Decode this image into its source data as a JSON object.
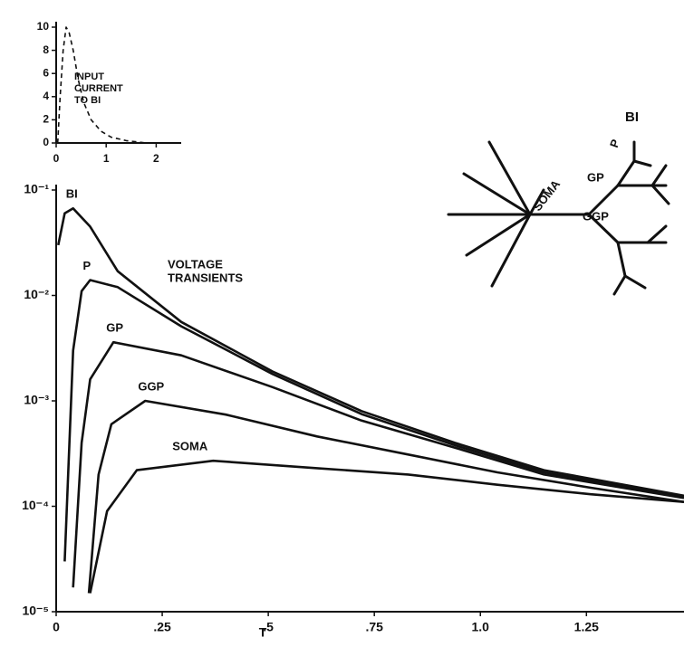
{
  "chart_data": [
    {
      "type": "line",
      "yscale": "log",
      "xlabel": "T",
      "annotations": [
        "VOLTAGE",
        "TRANSIENTS"
      ],
      "color": "#111",
      "xlim": [
        0,
        1.48
      ],
      "ylim": [
        1e-05,
        0.1
      ],
      "xticks": [
        0,
        {
          "value": 0.25,
          "label": ".25"
        },
        {
          "value": 0.5,
          "label": ".5"
        },
        {
          "value": 0.75,
          "label": ".75"
        },
        {
          "value": 1.0,
          "label": "1.0"
        },
        {
          "value": 1.25,
          "label": "1.25"
        }
      ],
      "yticks": [
        {
          "value": 0.1,
          "label": "10⁻¹"
        },
        {
          "value": 0.01,
          "label": "10⁻²"
        },
        {
          "value": 0.001,
          "label": "10⁻³"
        },
        {
          "value": 0.0001,
          "label": "10⁻⁴"
        },
        {
          "value": 1e-05,
          "label": "10⁻⁵"
        }
      ],
      "series": [
        {
          "name": "BI",
          "x": [
            0.005,
            0.02,
            0.04,
            0.08,
            0.145,
            0.295,
            0.51,
            0.72,
            0.94,
            1.15,
            1.48
          ],
          "values": [
            0.03,
            0.06,
            0.067,
            0.045,
            0.017,
            0.0056,
            0.0019,
            0.0008,
            0.0004,
            0.00022,
            0.000126
          ]
        },
        {
          "name": "P",
          "x": [
            0.02,
            0.04,
            0.06,
            0.08,
            0.145,
            0.295,
            0.51,
            0.72,
            0.94,
            1.15,
            1.48
          ],
          "values": [
            3e-05,
            0.003,
            0.011,
            0.014,
            0.012,
            0.0051,
            0.0018,
            0.00075,
            0.00038,
            0.00021,
            0.000122
          ]
        },
        {
          "name": "GP",
          "x": [
            0.04,
            0.06,
            0.08,
            0.135,
            0.295,
            0.51,
            0.72,
            0.94,
            1.15,
            1.48
          ],
          "values": [
            1.7e-05,
            0.0004,
            0.0016,
            0.0036,
            0.0027,
            0.00135,
            0.00065,
            0.00036,
            0.0002,
            0.00012
          ]
        },
        {
          "name": "GGP",
          "x": [
            0.077,
            0.1,
            0.13,
            0.21,
            0.4,
            0.615,
            0.83,
            1.04,
            1.26,
            1.48
          ],
          "values": [
            1.5e-05,
            0.0002,
            0.0006,
            0.001,
            0.00074,
            0.00046,
            0.00031,
            0.00021,
            0.00015,
            0.00011
          ]
        },
        {
          "name": "SOMA",
          "x": [
            0.08,
            0.12,
            0.19,
            0.37,
            0.615,
            0.83,
            1.04,
            1.26,
            1.48
          ],
          "values": [
            1.5e-05,
            9e-05,
            0.00022,
            0.00027,
            0.00023,
            0.0002,
            0.00016,
            0.00013,
            0.00011
          ]
        }
      ]
    },
    {
      "type": "line",
      "annotations": [
        "INPUT",
        "CURRENT",
        "TO BI"
      ],
      "color": "#111",
      "dashed": true,
      "xlim": [
        0,
        2.5
      ],
      "ylim": [
        0,
        10
      ],
      "xticks": [
        0,
        1,
        2
      ],
      "yticks": [
        0,
        2,
        4,
        6,
        8,
        10
      ],
      "series": [
        {
          "name": "INPUT CURRENT TO BI",
          "x": [
            0.03,
            0.08,
            0.14,
            0.2,
            0.26,
            0.34,
            0.44,
            0.55,
            0.7,
            0.9,
            1.1,
            1.4,
            1.8
          ],
          "values": [
            0,
            4,
            8,
            10,
            9.5,
            8,
            5.5,
            3.5,
            2,
            1,
            0.5,
            0.2,
            0
          ]
        }
      ]
    }
  ],
  "diagram": {
    "labels": [
      "BI",
      "P",
      "GP",
      "GGP",
      "SOMA"
    ]
  }
}
